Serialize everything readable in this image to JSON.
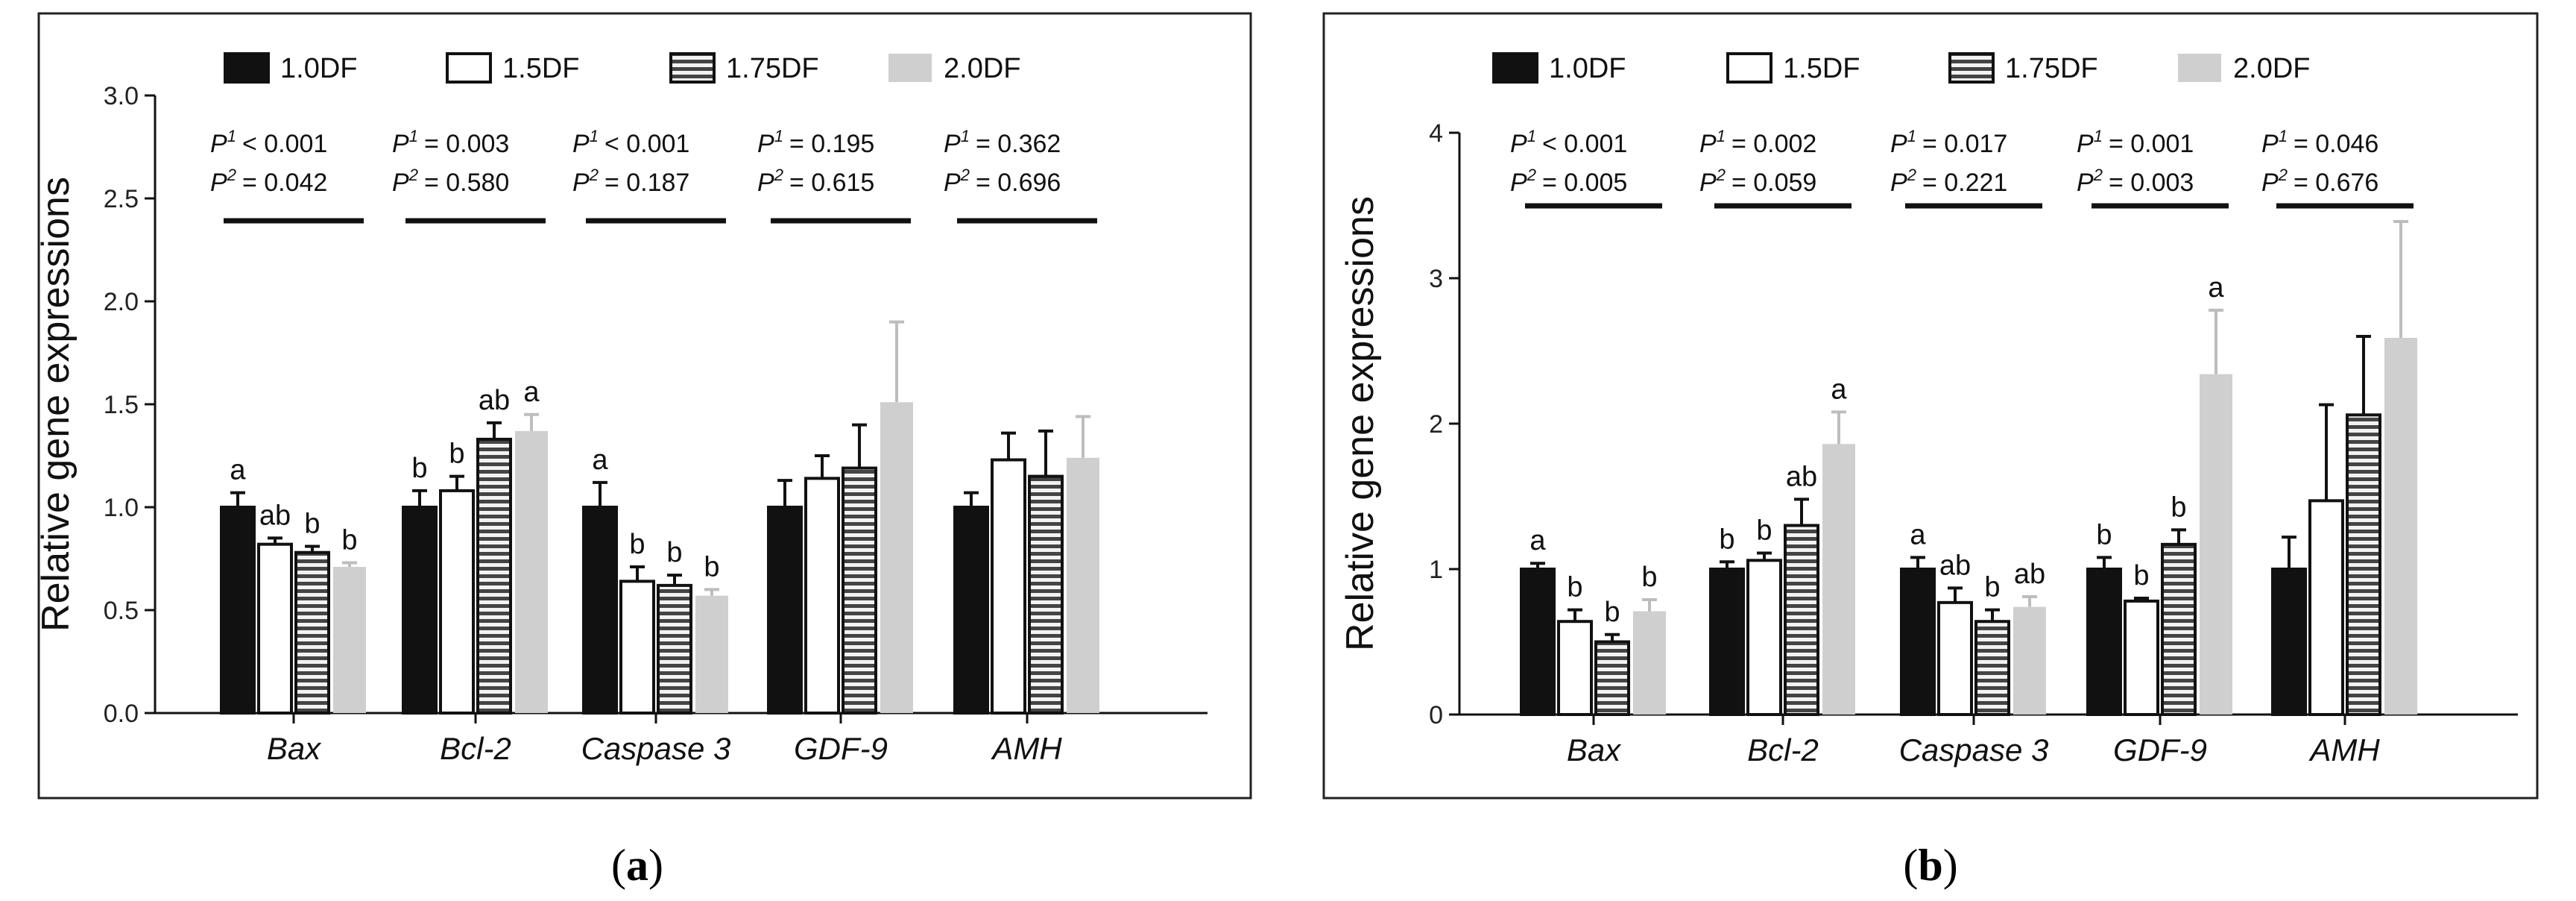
{
  "chart_data": [
    {
      "type": "bar",
      "panel_label": "a",
      "ylabel": "Relative gene expressions",
      "ylim": [
        0,
        3.0
      ],
      "yticks": [
        "0.0",
        "0.5",
        "1.0",
        "1.5",
        "2.0",
        "2.5",
        "3.0"
      ],
      "ytick_values": [
        0,
        0.5,
        1.0,
        1.5,
        2.0,
        2.5,
        3.0
      ],
      "categories": [
        "Bax",
        "Bcl-2",
        "Caspase 3",
        "GDF-9",
        "AMH"
      ],
      "legend": [
        "1.0DF",
        "1.5DF",
        "1.75DF",
        "2.0DF"
      ],
      "series": [
        {
          "name": "1.0DF",
          "values": [
            1.0,
            1.0,
            1.0,
            1.0,
            1.0
          ],
          "errors": [
            0.07,
            0.08,
            0.12,
            0.13,
            0.07
          ]
        },
        {
          "name": "1.5DF",
          "values": [
            0.82,
            1.08,
            0.64,
            1.14,
            1.23
          ],
          "errors": [
            0.03,
            0.07,
            0.07,
            0.11,
            0.13
          ]
        },
        {
          "name": "1.75DF",
          "values": [
            0.78,
            1.33,
            0.62,
            1.19,
            1.15
          ],
          "errors": [
            0.03,
            0.08,
            0.05,
            0.21,
            0.22
          ]
        },
        {
          "name": "2.0DF",
          "values": [
            0.71,
            1.37,
            0.57,
            1.51,
            1.24
          ],
          "errors": [
            0.02,
            0.08,
            0.03,
            0.39,
            0.2
          ]
        }
      ],
      "letters": [
        [
          "a",
          "ab",
          "b",
          "b"
        ],
        [
          "b",
          "b",
          "ab",
          "a"
        ],
        [
          "a",
          "b",
          "b",
          "b"
        ],
        [
          "",
          "",
          "",
          ""
        ],
        [
          "",
          "",
          "",
          ""
        ]
      ],
      "p1": [
        "< 0.001",
        "= 0.003",
        "< 0.001",
        "= 0.195",
        "= 0.362"
      ],
      "p2": [
        "= 0.042",
        "= 0.580",
        "= 0.187",
        "= 0.615",
        "= 0.696"
      ]
    },
    {
      "type": "bar",
      "panel_label": "b",
      "ylabel": "Relative gene expressions",
      "ylim": [
        0,
        4
      ],
      "yticks": [
        "0",
        "1",
        "2",
        "3",
        "4"
      ],
      "ytick_values": [
        0,
        1,
        2,
        3,
        4
      ],
      "categories": [
        "Bax",
        "Bcl-2",
        "Caspase 3",
        "GDF-9",
        "AMH"
      ],
      "legend": [
        "1.0DF",
        "1.5DF",
        "1.75DF",
        "2.0DF"
      ],
      "series": [
        {
          "name": "1.0DF",
          "values": [
            1.0,
            1.0,
            1.0,
            1.0,
            1.0
          ],
          "errors": [
            0.04,
            0.05,
            0.08,
            0.08,
            0.22
          ]
        },
        {
          "name": "1.5DF",
          "values": [
            0.64,
            1.06,
            0.77,
            0.78,
            1.47
          ],
          "errors": [
            0.08,
            0.05,
            0.1,
            0.02,
            0.66
          ]
        },
        {
          "name": "1.75DF",
          "values": [
            0.5,
            1.3,
            0.64,
            1.17,
            2.06
          ],
          "errors": [
            0.05,
            0.18,
            0.08,
            0.1,
            0.54
          ]
        },
        {
          "name": "2.0DF",
          "values": [
            0.71,
            1.86,
            0.74,
            2.34,
            2.59
          ],
          "errors": [
            0.08,
            0.22,
            0.07,
            0.44,
            0.8
          ]
        }
      ],
      "letters": [
        [
          "a",
          "b",
          "b",
          "b"
        ],
        [
          "b",
          "b",
          "ab",
          "a"
        ],
        [
          "a",
          "ab",
          "b",
          "ab"
        ],
        [
          "b",
          "b",
          "b",
          "a"
        ],
        [
          "",
          "",
          "",
          ""
        ]
      ],
      "p1": [
        "< 0.001",
        "= 0.002",
        "= 0.017",
        "= 0.001",
        "= 0.046"
      ],
      "p2": [
        "= 0.005",
        "= 0.059",
        "= 0.221",
        "= 0.003",
        "= 0.676"
      ]
    }
  ]
}
